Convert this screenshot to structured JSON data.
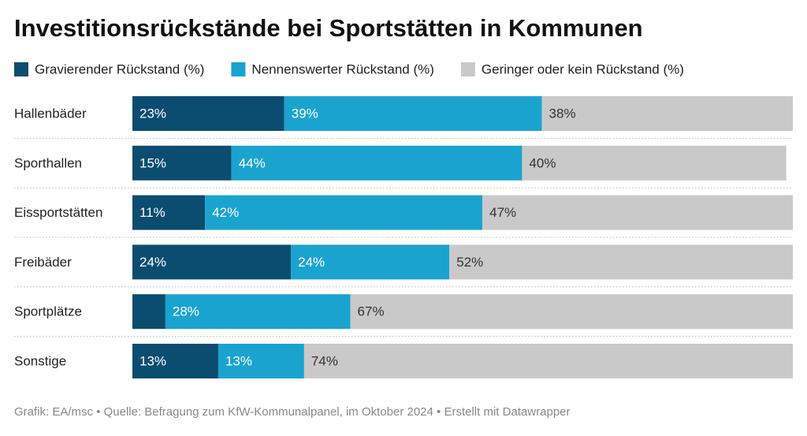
{
  "chart_data": {
    "type": "stacked-bar-horizontal",
    "title": "Investitionsrückstände bei Sportstätten in Kommunen",
    "categories": [
      "Hallenbäder",
      "Sporthallen",
      "Eissportstätten",
      "Freibäder",
      "Sportplätze",
      "Sonstige"
    ],
    "series": [
      {
        "name": "Gravierender Rückstand (%)",
        "color": "#0b4d70",
        "values": [
          23,
          15,
          11,
          24,
          5,
          13
        ],
        "value_labels": [
          "23%",
          "15%",
          "11%",
          "24%",
          null,
          "13%"
        ]
      },
      {
        "name": "Nennenswerter Rückstand (%)",
        "color": "#1ba3d0",
        "values": [
          39,
          44,
          42,
          24,
          28,
          13
        ],
        "value_labels": [
          "39%",
          "44%",
          "42%",
          "24%",
          "28%",
          "13%"
        ]
      },
      {
        "name": "Geringer oder kein Rückstand (%)",
        "color": "#c9c9c9",
        "values": [
          38,
          40,
          47,
          52,
          67,
          74
        ],
        "value_labels": [
          "38%",
          "40%",
          "47%",
          "52%",
          "67%",
          "74%"
        ]
      }
    ],
    "xlim": [
      0,
      100
    ],
    "source": "Grafik: EA/msc • Quelle: Befragung zum KfW-Kommunalpanel, im Oktober 2024 • Erstellt mit Datawrapper"
  }
}
